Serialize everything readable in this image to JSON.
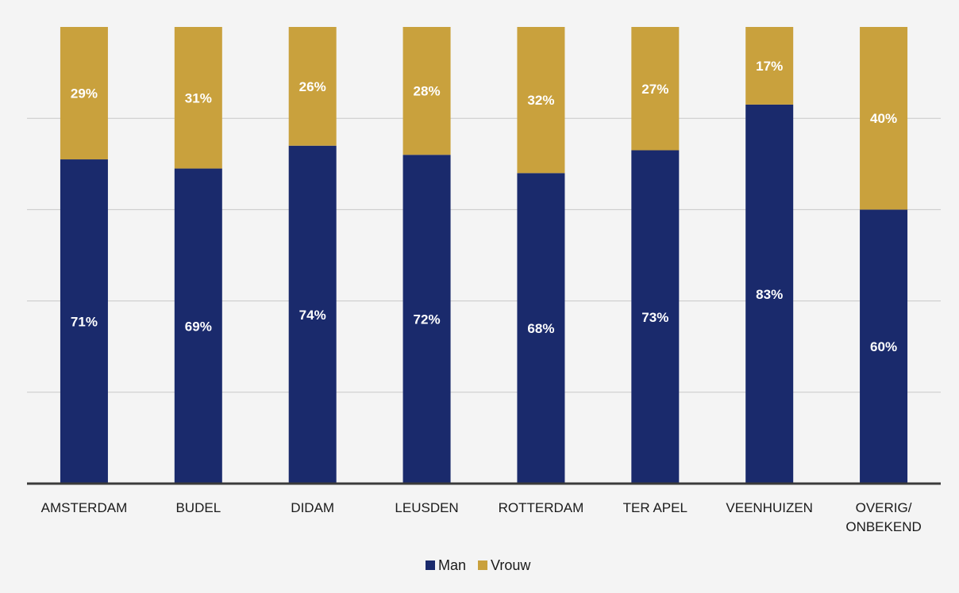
{
  "chart_data": {
    "type": "bar",
    "stacked": true,
    "percent_stacked": true,
    "categories": [
      "AMSTERDAM",
      "BUDEL",
      "DIDAM",
      "LEUSDEN",
      "ROTTERDAM",
      "TER APEL",
      "VEENHUIZEN",
      "OVERIG/ ONBEKEND"
    ],
    "series": [
      {
        "name": "Man",
        "values": [
          71,
          69,
          74,
          72,
          68,
          73,
          83,
          60
        ],
        "labels": [
          "71%",
          "69%",
          "74%",
          "72%",
          "68%",
          "73%",
          "83%",
          "60%"
        ]
      },
      {
        "name": "Vrouw",
        "values": [
          29,
          31,
          26,
          28,
          32,
          27,
          17,
          40
        ],
        "labels": [
          "29%",
          "31%",
          "26%",
          "28%",
          "32%",
          "27%",
          "17%",
          "40%"
        ]
      }
    ],
    "ylim": [
      0,
      100
    ],
    "grid": true,
    "legend_position": "bottom",
    "colors": {
      "Man": "#1a2a6c",
      "Vrouw": "#c9a13d"
    },
    "title": "",
    "xlabel": "",
    "ylabel": ""
  }
}
